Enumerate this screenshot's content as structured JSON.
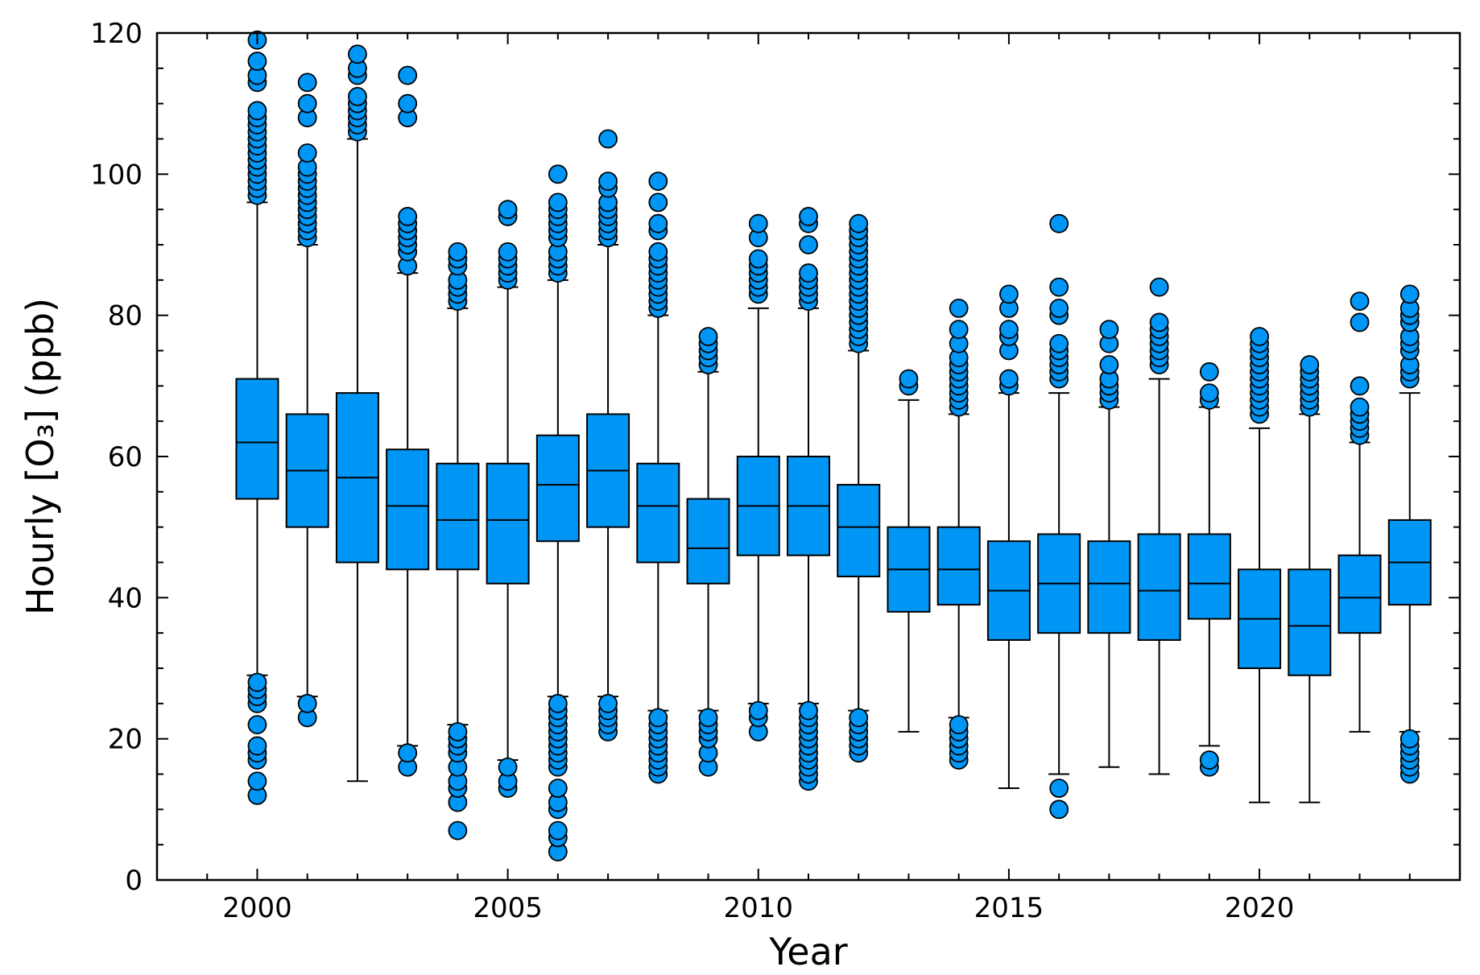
{
  "chart_data": {
    "type": "boxplot",
    "xlabel": "Year",
    "ylabel": "Hourly [O₃] (ppb)",
    "xlim": [
      1998,
      2024
    ],
    "ylim": [
      0,
      120
    ],
    "xticks": [
      2000,
      2005,
      2010,
      2015,
      2020
    ],
    "yticks": [
      0,
      20,
      40,
      60,
      80,
      100,
      120
    ],
    "grid": false,
    "fill_color": "#0096f5",
    "edge_color": "#000000",
    "boxes": [
      {
        "year": 2000,
        "whisker_low": 29,
        "q1": 54,
        "median": 62,
        "q3": 71,
        "whisker_high": 96,
        "outliers": [
          12,
          14,
          17,
          18,
          19,
          22,
          25,
          26,
          27,
          28,
          97,
          98,
          99,
          100,
          101,
          102,
          103,
          104,
          105,
          106,
          107,
          108,
          109,
          113,
          114,
          116,
          119
        ]
      },
      {
        "year": 2001,
        "whisker_low": 26,
        "q1": 50,
        "median": 58,
        "q3": 66,
        "whisker_high": 90,
        "outliers": [
          23,
          25,
          91,
          92,
          93,
          94,
          95,
          96,
          97,
          98,
          99,
          100,
          101,
          103,
          108,
          110,
          113
        ]
      },
      {
        "year": 2002,
        "whisker_low": 14,
        "q1": 45,
        "median": 57,
        "q3": 69,
        "whisker_high": 105,
        "outliers": [
          106,
          107,
          108,
          109,
          110,
          111,
          114,
          115,
          117
        ]
      },
      {
        "year": 2003,
        "whisker_low": 19,
        "q1": 44,
        "median": 53,
        "q3": 61,
        "whisker_high": 86,
        "outliers": [
          16,
          18,
          87,
          89,
          90,
          91,
          92,
          93,
          94,
          108,
          110,
          114
        ]
      },
      {
        "year": 2004,
        "whisker_low": 22,
        "q1": 44,
        "median": 51,
        "q3": 59,
        "whisker_high": 81,
        "outliers": [
          7,
          11,
          13,
          14,
          16,
          18,
          19,
          20,
          21,
          82,
          83,
          84,
          85,
          87,
          88,
          89
        ]
      },
      {
        "year": 2005,
        "whisker_low": 17,
        "q1": 42,
        "median": 51,
        "q3": 59,
        "whisker_high": 84,
        "outliers": [
          13,
          14,
          16,
          85,
          86,
          87,
          88,
          89,
          94,
          95
        ]
      },
      {
        "year": 2006,
        "whisker_low": 26,
        "q1": 48,
        "median": 56,
        "q3": 63,
        "whisker_high": 85,
        "outliers": [
          4,
          6,
          7,
          10,
          11,
          13,
          16,
          17,
          18,
          19,
          20,
          21,
          22,
          23,
          24,
          25,
          86,
          87,
          88,
          89,
          91,
          92,
          93,
          94,
          95,
          96,
          100
        ]
      },
      {
        "year": 2007,
        "whisker_low": 26,
        "q1": 50,
        "median": 58,
        "q3": 66,
        "whisker_high": 90,
        "outliers": [
          21,
          22,
          23,
          24,
          25,
          91,
          92,
          93,
          94,
          95,
          96,
          98,
          99,
          105
        ]
      },
      {
        "year": 2008,
        "whisker_low": 24,
        "q1": 45,
        "median": 53,
        "q3": 59,
        "whisker_high": 80,
        "outliers": [
          15,
          16,
          17,
          18,
          19,
          20,
          21,
          22,
          23,
          81,
          82,
          83,
          84,
          85,
          86,
          87,
          88,
          89,
          92,
          93,
          96,
          99
        ]
      },
      {
        "year": 2009,
        "whisker_low": 24,
        "q1": 42,
        "median": 47,
        "q3": 54,
        "whisker_high": 72,
        "outliers": [
          16,
          18,
          20,
          21,
          22,
          23,
          73,
          74,
          75,
          76,
          77
        ]
      },
      {
        "year": 2010,
        "whisker_low": 25,
        "q1": 46,
        "median": 53,
        "q3": 60,
        "whisker_high": 81,
        "outliers": [
          21,
          23,
          24,
          83,
          84,
          85,
          86,
          87,
          88,
          91,
          93
        ]
      },
      {
        "year": 2011,
        "whisker_low": 25,
        "q1": 46,
        "median": 53,
        "q3": 60,
        "whisker_high": 81,
        "outliers": [
          14,
          15,
          16,
          17,
          18,
          19,
          20,
          21,
          22,
          23,
          24,
          82,
          83,
          84,
          85,
          86,
          90,
          93,
          94
        ]
      },
      {
        "year": 2012,
        "whisker_low": 24,
        "q1": 43,
        "median": 50,
        "q3": 56,
        "whisker_high": 75,
        "outliers": [
          18,
          19,
          20,
          21,
          22,
          23,
          76,
          77,
          78,
          79,
          80,
          81,
          82,
          83,
          84,
          85,
          86,
          87,
          88,
          89,
          90,
          91,
          92,
          93
        ]
      },
      {
        "year": 2013,
        "whisker_low": 21,
        "q1": 38,
        "median": 44,
        "q3": 50,
        "whisker_high": 68,
        "outliers": [
          70,
          71
        ]
      },
      {
        "year": 2014,
        "whisker_low": 23,
        "q1": 39,
        "median": 44,
        "q3": 50,
        "whisker_high": 66,
        "outliers": [
          17,
          18,
          19,
          20,
          21,
          22,
          67,
          68,
          69,
          70,
          71,
          72,
          73,
          74,
          76,
          78,
          81
        ]
      },
      {
        "year": 2015,
        "whisker_low": 13,
        "q1": 34,
        "median": 41,
        "q3": 48,
        "whisker_high": 69,
        "outliers": [
          70,
          71,
          75,
          77,
          78,
          81,
          83
        ]
      },
      {
        "year": 2016,
        "whisker_low": 15,
        "q1": 35,
        "median": 42,
        "q3": 49,
        "whisker_high": 69,
        "outliers": [
          10,
          13,
          71,
          72,
          73,
          74,
          75,
          76,
          80,
          81,
          84,
          93
        ]
      },
      {
        "year": 2017,
        "whisker_low": 16,
        "q1": 35,
        "median": 42,
        "q3": 48,
        "whisker_high": 67,
        "outliers": [
          68,
          69,
          70,
          71,
          73,
          76,
          78
        ]
      },
      {
        "year": 2018,
        "whisker_low": 15,
        "q1": 34,
        "median": 41,
        "q3": 49,
        "whisker_high": 71,
        "outliers": [
          73,
          74,
          75,
          76,
          77,
          78,
          79,
          84
        ]
      },
      {
        "year": 2019,
        "whisker_low": 19,
        "q1": 37,
        "median": 42,
        "q3": 49,
        "whisker_high": 67,
        "outliers": [
          16,
          17,
          68,
          69,
          72
        ]
      },
      {
        "year": 2020,
        "whisker_low": 11,
        "q1": 30,
        "median": 37,
        "q3": 44,
        "whisker_high": 64,
        "outliers": [
          66,
          67,
          68,
          69,
          70,
          71,
          72,
          73,
          74,
          75,
          76,
          77
        ]
      },
      {
        "year": 2021,
        "whisker_low": 11,
        "q1": 29,
        "median": 36,
        "q3": 44,
        "whisker_high": 66,
        "outliers": [
          67,
          68,
          69,
          70,
          71,
          72,
          73
        ]
      },
      {
        "year": 2022,
        "whisker_low": 21,
        "q1": 35,
        "median": 40,
        "q3": 46,
        "whisker_high": 62,
        "outliers": [
          63,
          64,
          65,
          66,
          67,
          70,
          79,
          82
        ]
      },
      {
        "year": 2023,
        "whisker_low": 21,
        "q1": 39,
        "median": 45,
        "q3": 51,
        "whisker_high": 69,
        "outliers": [
          15,
          16,
          17,
          18,
          19,
          20,
          71,
          72,
          73,
          75,
          76,
          77,
          79,
          80,
          81,
          83
        ]
      }
    ]
  }
}
